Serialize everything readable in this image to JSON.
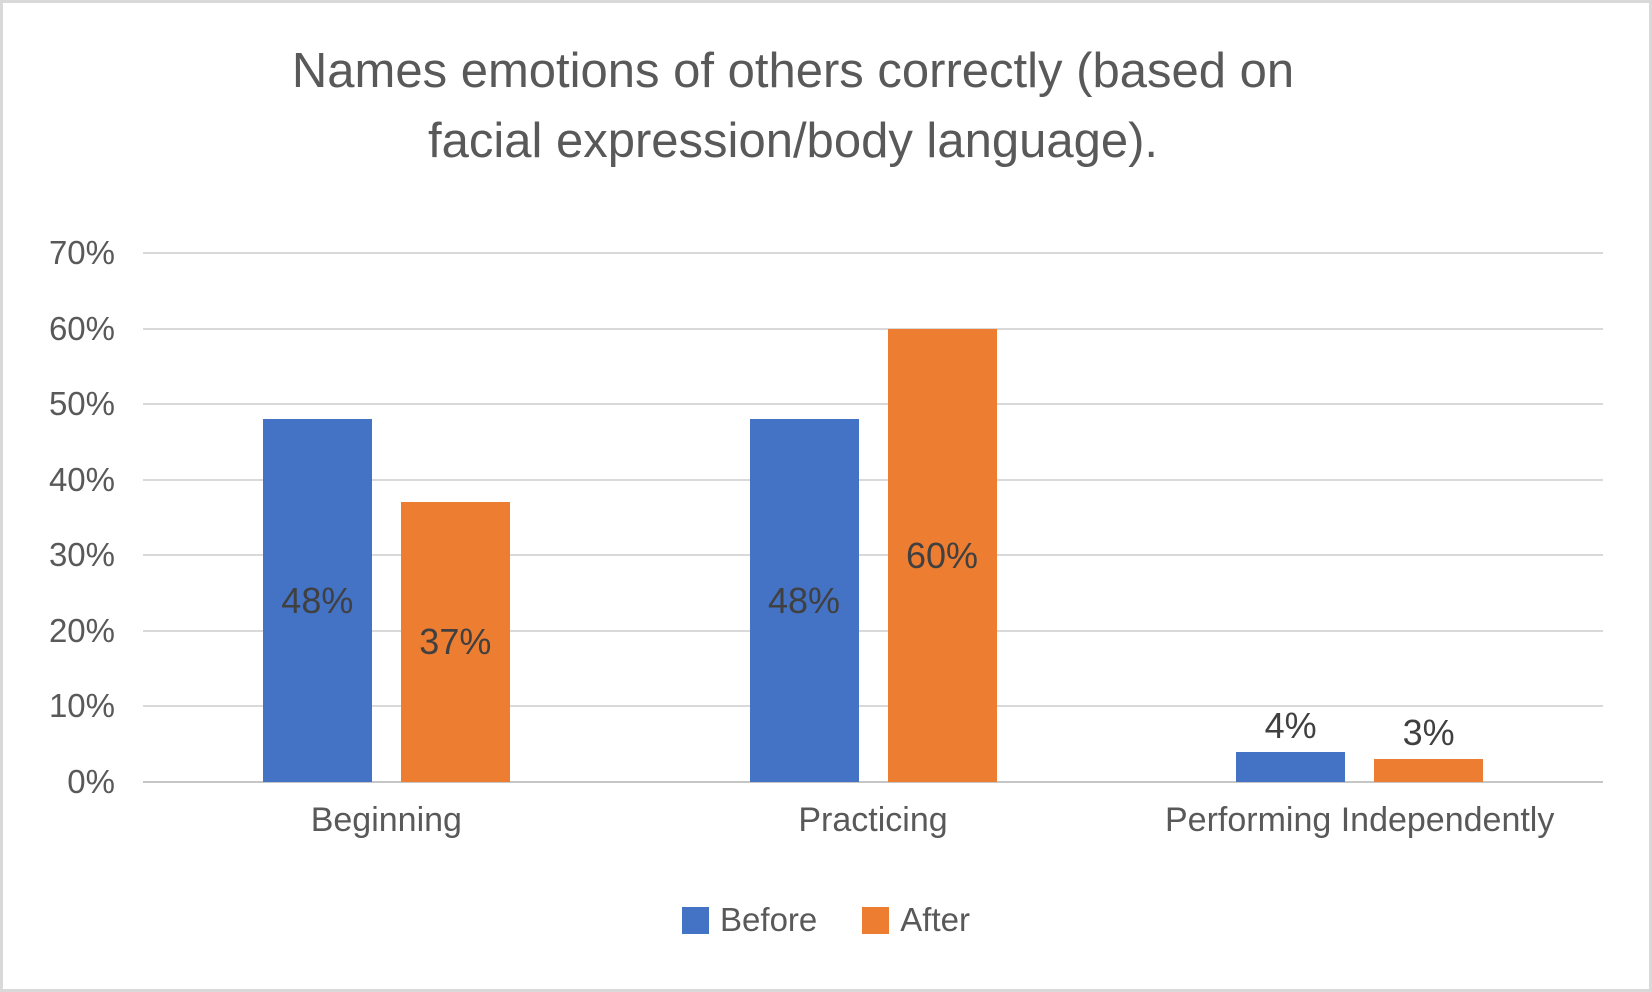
{
  "chart_data": {
    "type": "bar",
    "title": "Names emotions of others correctly (based on facial expression/body language).",
    "title_lines": [
      "Names emotions of others correctly (based on",
      "facial expression/body language)."
    ],
    "categories": [
      "Beginning",
      "Practicing",
      "Performing Independently"
    ],
    "series": [
      {
        "name": "Before",
        "color": "#4472C4",
        "values": [
          48,
          48,
          4
        ]
      },
      {
        "name": "After",
        "color": "#ED7D31",
        "values": [
          37,
          60,
          3
        ]
      }
    ],
    "value_labels": [
      [
        "48%",
        "37%"
      ],
      [
        "48%",
        "60%"
      ],
      [
        "4%",
        "3%"
      ]
    ],
    "y_ticks": [
      "70%",
      "60%",
      "50%",
      "40%",
      "30%",
      "20%",
      "10%",
      "0%"
    ],
    "ylim": [
      0,
      70
    ],
    "grid": true,
    "legend_position": "bottom"
  },
  "colors": {
    "series_before": "#4472C4",
    "series_after": "#ED7D31",
    "gridline": "#D9D9D9",
    "axis_line": "#C6C6C6",
    "title_text": "#595959",
    "tick_text": "#595959",
    "data_label_text": "#404040",
    "canvas_border": "#D9D9D9",
    "background": "#FFFFFF"
  }
}
